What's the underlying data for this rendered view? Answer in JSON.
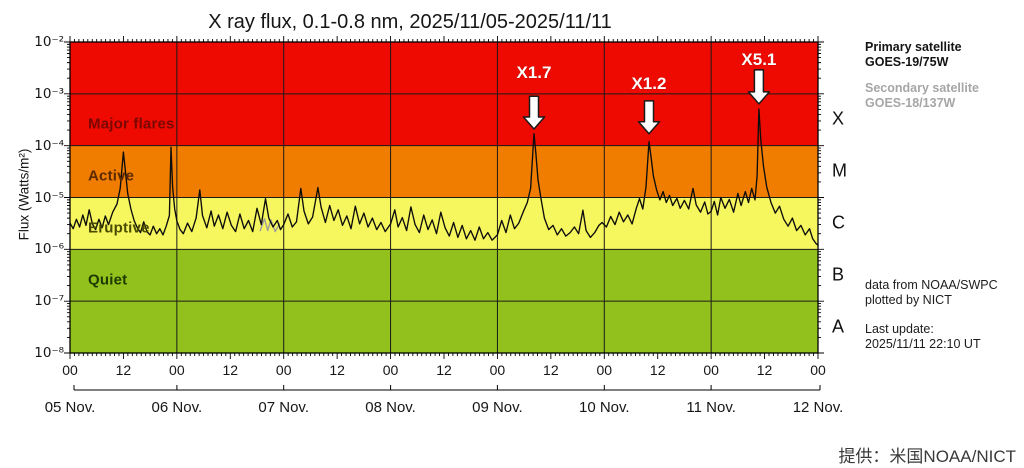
{
  "figure": {
    "title": "X ray flux, 0.1-0.8 nm, 2025/11/05-2025/11/11",
    "y_axis_title": "Flux (Watts/m²)",
    "credit": "提供：米国NOAA/NICT"
  },
  "side_panel": {
    "primary_satellite_label": "Primary satellite",
    "primary_satellite_value": "GOES-19/75W",
    "secondary_satellite_label": "Secondary satellite",
    "secondary_satellite_value": "GOES-18/137W",
    "source_line1": "data from NOAA/SWPC",
    "source_line2": "plotted by NICT",
    "last_update_label": "Last update:",
    "last_update_value": "2025/11/11 22:10 UT"
  },
  "chart_data": {
    "type": "line",
    "title": "X ray flux, 0.1-0.8 nm, 2025/11/05-2025/11/11",
    "xlabel": "",
    "ylabel": "Flux (Watts/m²)",
    "x_unit": "days since 2025-11-05 00:00 UT",
    "x_range_days": 7,
    "ylim": [
      1e-08,
      0.01
    ],
    "y_scale": "log",
    "grid": true,
    "y_tick_labels": [
      "10⁻²",
      "10⁻³",
      "10⁻⁴",
      "10⁻⁵",
      "10⁻⁶",
      "10⁻⁷",
      "10⁻⁸"
    ],
    "y_tick_fluxes": [
      0.01,
      0.001,
      0.0001,
      1e-05,
      1e-06,
      1e-07,
      1e-08
    ],
    "gridline_fluxes": [
      0.001,
      0.0001,
      1e-05,
      1e-06,
      1e-07
    ],
    "hour_tick_labels": [
      "00",
      "12",
      "00",
      "12",
      "00",
      "12",
      "00",
      "12",
      "00",
      "12",
      "00",
      "12",
      "00",
      "12",
      "00"
    ],
    "date_tick_labels": [
      "05 Nov.",
      "06 Nov.",
      "07 Nov.",
      "08 Nov.",
      "09 Nov.",
      "10 Nov.",
      "11 Nov.",
      "12 Nov."
    ],
    "class_letters": [
      {
        "label": "X",
        "flux": 0.00032
      },
      {
        "label": "M",
        "flux": 3.2e-05
      },
      {
        "label": "C",
        "flux": 3.2e-06
      },
      {
        "label": "B",
        "flux": 3.2e-07
      },
      {
        "label": "A",
        "flux": 3.2e-08
      }
    ],
    "bands": [
      {
        "name": "Major flares",
        "flux_min": 0.0001,
        "flux_max": 0.01,
        "color": "#ee0a00",
        "label_color": "#7a0800",
        "label_flux": 0.00032
      },
      {
        "name": "Active",
        "flux_min": 1e-05,
        "flux_max": 0.0001,
        "color": "#f07d00",
        "label_color": "#5c2a00",
        "label_flux": 3.2e-05
      },
      {
        "name": "Eruptive",
        "flux_min": 1e-06,
        "flux_max": 1e-05,
        "color": "#f6f65f",
        "label_color": "#4a4a00",
        "label_flux": 3.2e-06
      },
      {
        "name": "Quiet",
        "flux_min": 1e-08,
        "flux_max": 1e-06,
        "color": "#92c11e",
        "label_color": "#1d3b00",
        "label_flux": 3.2e-07
      }
    ],
    "flare_annotations": [
      {
        "label": "X1.7",
        "t": 4.342,
        "peak_flux": 0.00017,
        "label_flux": 0.0025,
        "arrow_from_flux": 0.0009,
        "arrow_to_flux": 0.00021
      },
      {
        "label": "X1.2",
        "t": 5.418,
        "peak_flux": 0.00012,
        "label_flux": 0.00155,
        "arrow_from_flux": 0.00073,
        "arrow_to_flux": 0.00017
      },
      {
        "label": "X5.1",
        "t": 6.447,
        "peak_flux": 0.00051,
        "label_flux": 0.0045,
        "arrow_from_flux": 0.0029,
        "arrow_to_flux": 0.00064
      }
    ],
    "series": [
      {
        "name": "GOES secondary (gray segment)",
        "color": "#9c9c9c",
        "points": [
          [
            1.78,
            2.3e-06
          ],
          [
            1.82,
            3.9e-06
          ],
          [
            1.85,
            2.3e-06
          ],
          [
            1.88,
            3.7e-06
          ],
          [
            1.92,
            2.2e-06
          ],
          [
            1.96,
            3.1e-06
          ]
        ]
      },
      {
        "name": "GOES primary X-ray flux",
        "color": "#0d0d0d",
        "points": [
          [
            0.0,
            3.2e-06
          ],
          [
            0.03,
            2.5e-06
          ],
          [
            0.06,
            3.8e-06
          ],
          [
            0.09,
            2.7e-06
          ],
          [
            0.12,
            4.6e-06
          ],
          [
            0.15,
            2.9e-06
          ],
          [
            0.18,
            5.8e-06
          ],
          [
            0.21,
            3.1e-06
          ],
          [
            0.24,
            2.4e-06
          ],
          [
            0.27,
            3.8e-06
          ],
          [
            0.3,
            2.6e-06
          ],
          [
            0.33,
            4.4e-06
          ],
          [
            0.36,
            3e-06
          ],
          [
            0.4,
            5.2e-06
          ],
          [
            0.44,
            7.5e-06
          ],
          [
            0.47,
            1.5e-05
          ],
          [
            0.5,
            7.5e-05
          ],
          [
            0.52,
            3e-05
          ],
          [
            0.54,
            1.2e-05
          ],
          [
            0.57,
            6e-06
          ],
          [
            0.6,
            3.6e-06
          ],
          [
            0.63,
            2.6e-06
          ],
          [
            0.66,
            2.1e-06
          ],
          [
            0.69,
            3.4e-06
          ],
          [
            0.72,
            2.2e-06
          ],
          [
            0.75,
            1.9e-06
          ],
          [
            0.78,
            2.8e-06
          ],
          [
            0.81,
            2e-06
          ],
          [
            0.84,
            2.5e-06
          ],
          [
            0.87,
            1.9e-06
          ],
          [
            0.9,
            2.8e-06
          ],
          [
            0.93,
            4.5e-06
          ],
          [
            0.945,
            9.3e-05
          ],
          [
            0.96,
            1.6e-05
          ],
          [
            0.98,
            6e-06
          ],
          [
            1.0,
            3.5e-06
          ],
          [
            1.03,
            2.4e-06
          ],
          [
            1.06,
            2e-06
          ],
          [
            1.1,
            3.2e-06
          ],
          [
            1.14,
            2.2e-06
          ],
          [
            1.18,
            4e-06
          ],
          [
            1.215,
            1.4e-05
          ],
          [
            1.24,
            4.5e-06
          ],
          [
            1.28,
            2.6e-06
          ],
          [
            1.32,
            5.5e-06
          ],
          [
            1.35,
            2.8e-06
          ],
          [
            1.39,
            4.6e-06
          ],
          [
            1.43,
            2.5e-06
          ],
          [
            1.47,
            5.2e-06
          ],
          [
            1.51,
            2.9e-06
          ],
          [
            1.55,
            2.2e-06
          ],
          [
            1.59,
            4.8e-06
          ],
          [
            1.63,
            2.5e-06
          ],
          [
            1.67,
            3.6e-06
          ],
          [
            1.71,
            2.2e-06
          ],
          [
            1.75,
            6.2e-06
          ],
          [
            1.79,
            3e-06
          ],
          [
            1.83,
            9.5e-06
          ],
          [
            1.86,
            4e-06
          ],
          [
            1.9,
            2.7e-06
          ],
          [
            1.94,
            3.6e-06
          ],
          [
            1.97,
            2.4e-06
          ],
          [
            2.0,
            3e-06
          ],
          [
            2.04,
            4.8e-06
          ],
          [
            2.08,
            2.7e-06
          ],
          [
            2.12,
            3.4e-06
          ],
          [
            2.16,
            1.5e-05
          ],
          [
            2.19,
            5.5e-06
          ],
          [
            2.23,
            3.1e-06
          ],
          [
            2.27,
            4.2e-06
          ],
          [
            2.32,
            1.55e-05
          ],
          [
            2.35,
            6.5e-06
          ],
          [
            2.39,
            3.3e-06
          ],
          [
            2.43,
            7e-06
          ],
          [
            2.47,
            3.6e-06
          ],
          [
            2.51,
            5.8e-06
          ],
          [
            2.55,
            2.9e-06
          ],
          [
            2.59,
            4.4e-06
          ],
          [
            2.63,
            2.5e-06
          ],
          [
            2.67,
            6.8e-06
          ],
          [
            2.71,
            3.1e-06
          ],
          [
            2.75,
            5e-06
          ],
          [
            2.79,
            2.7e-06
          ],
          [
            2.83,
            4e-06
          ],
          [
            2.87,
            2.4e-06
          ],
          [
            2.91,
            3.3e-06
          ],
          [
            2.95,
            2.2e-06
          ],
          [
            3.0,
            3.1e-06
          ],
          [
            3.04,
            5.8e-06
          ],
          [
            3.07,
            2.7e-06
          ],
          [
            3.11,
            4.1e-06
          ],
          [
            3.15,
            2.3e-06
          ],
          [
            3.19,
            6.6e-06
          ],
          [
            3.23,
            3e-06
          ],
          [
            3.27,
            2.1e-06
          ],
          [
            3.31,
            4.6e-06
          ],
          [
            3.35,
            2.4e-06
          ],
          [
            3.39,
            3.7e-06
          ],
          [
            3.43,
            2e-06
          ],
          [
            3.47,
            5.2e-06
          ],
          [
            3.51,
            2.6e-06
          ],
          [
            3.55,
            1.8e-06
          ],
          [
            3.59,
            3.3e-06
          ],
          [
            3.63,
            1.7e-06
          ],
          [
            3.67,
            2.9e-06
          ],
          [
            3.71,
            1.6e-06
          ],
          [
            3.75,
            2.3e-06
          ],
          [
            3.79,
            1.5e-06
          ],
          [
            3.83,
            2.7e-06
          ],
          [
            3.87,
            1.6e-06
          ],
          [
            3.91,
            2.1e-06
          ],
          [
            3.95,
            1.5e-06
          ],
          [
            4.0,
            1.9e-06
          ],
          [
            4.04,
            3.6e-06
          ],
          [
            4.08,
            2.1e-06
          ],
          [
            4.12,
            4.6e-06
          ],
          [
            4.16,
            2.5e-06
          ],
          [
            4.2,
            3.2e-06
          ],
          [
            4.24,
            5.2e-06
          ],
          [
            4.28,
            8e-06
          ],
          [
            4.31,
            1.5e-05
          ],
          [
            4.342,
            0.00017
          ],
          [
            4.36,
            7e-05
          ],
          [
            4.38,
            2.2e-05
          ],
          [
            4.41,
            9e-06
          ],
          [
            4.44,
            4e-06
          ],
          [
            4.48,
            2.4e-06
          ],
          [
            4.52,
            2.9e-06
          ],
          [
            4.56,
            1.9e-06
          ],
          [
            4.6,
            2.5e-06
          ],
          [
            4.64,
            1.8e-06
          ],
          [
            4.68,
            2.1e-06
          ],
          [
            4.72,
            2.7e-06
          ],
          [
            4.76,
            2e-06
          ],
          [
            4.8,
            5.7e-06
          ],
          [
            4.83,
            2.3e-06
          ],
          [
            4.87,
            1.7e-06
          ],
          [
            4.91,
            2.1e-06
          ],
          [
            4.95,
            2.9e-06
          ],
          [
            4.98,
            3.3e-06
          ],
          [
            5.02,
            2.7e-06
          ],
          [
            5.06,
            4.3e-06
          ],
          [
            5.1,
            3e-06
          ],
          [
            5.14,
            5.2e-06
          ],
          [
            5.18,
            3.4e-06
          ],
          [
            5.22,
            4.6e-06
          ],
          [
            5.26,
            3.1e-06
          ],
          [
            5.3,
            6.2e-06
          ],
          [
            5.33,
            9.5e-06
          ],
          [
            5.36,
            6e-06
          ],
          [
            5.39,
            1.6e-05
          ],
          [
            5.418,
            0.00012
          ],
          [
            5.44,
            5.5e-05
          ],
          [
            5.46,
            2.6e-05
          ],
          [
            5.49,
            1.4e-05
          ],
          [
            5.52,
            9e-06
          ],
          [
            5.55,
            1.3e-05
          ],
          [
            5.58,
            8e-06
          ],
          [
            5.61,
            1.1e-05
          ],
          [
            5.64,
            7e-06
          ],
          [
            5.68,
            9.6e-06
          ],
          [
            5.71,
            6.2e-06
          ],
          [
            5.75,
            8.8e-06
          ],
          [
            5.79,
            6e-06
          ],
          [
            5.83,
            1.5e-05
          ],
          [
            5.86,
            7.2e-06
          ],
          [
            5.9,
            5.2e-06
          ],
          [
            5.94,
            8.2e-06
          ],
          [
            5.97,
            4.8e-06
          ],
          [
            6.0,
            5.4e-06
          ],
          [
            6.03,
            8.4e-06
          ],
          [
            6.06,
            4.6e-06
          ],
          [
            6.09,
            1e-05
          ],
          [
            6.13,
            6.2e-06
          ],
          [
            6.17,
            9.2e-06
          ],
          [
            6.21,
            5.2e-06
          ],
          [
            6.25,
            1.2e-05
          ],
          [
            6.28,
            7e-06
          ],
          [
            6.32,
            1.3e-05
          ],
          [
            6.35,
            8e-06
          ],
          [
            6.38,
            1.5e-05
          ],
          [
            6.41,
            9e-06
          ],
          [
            6.43,
            2.6e-05
          ],
          [
            6.447,
            0.00051
          ],
          [
            6.465,
            0.00013
          ],
          [
            6.49,
            4e-05
          ],
          [
            6.52,
            1.6e-05
          ],
          [
            6.56,
            8e-06
          ],
          [
            6.6,
            5e-06
          ],
          [
            6.64,
            6.8e-06
          ],
          [
            6.68,
            3.8e-06
          ],
          [
            6.72,
            2.8e-06
          ],
          [
            6.76,
            4e-06
          ],
          [
            6.8,
            2.3e-06
          ],
          [
            6.84,
            2.9e-06
          ],
          [
            6.88,
            1.9e-06
          ],
          [
            6.92,
            2.5e-06
          ],
          [
            6.95,
            1.6e-06
          ],
          [
            6.98,
            1.3e-06
          ],
          [
            7.0,
            1.2e-06
          ]
        ]
      }
    ]
  }
}
